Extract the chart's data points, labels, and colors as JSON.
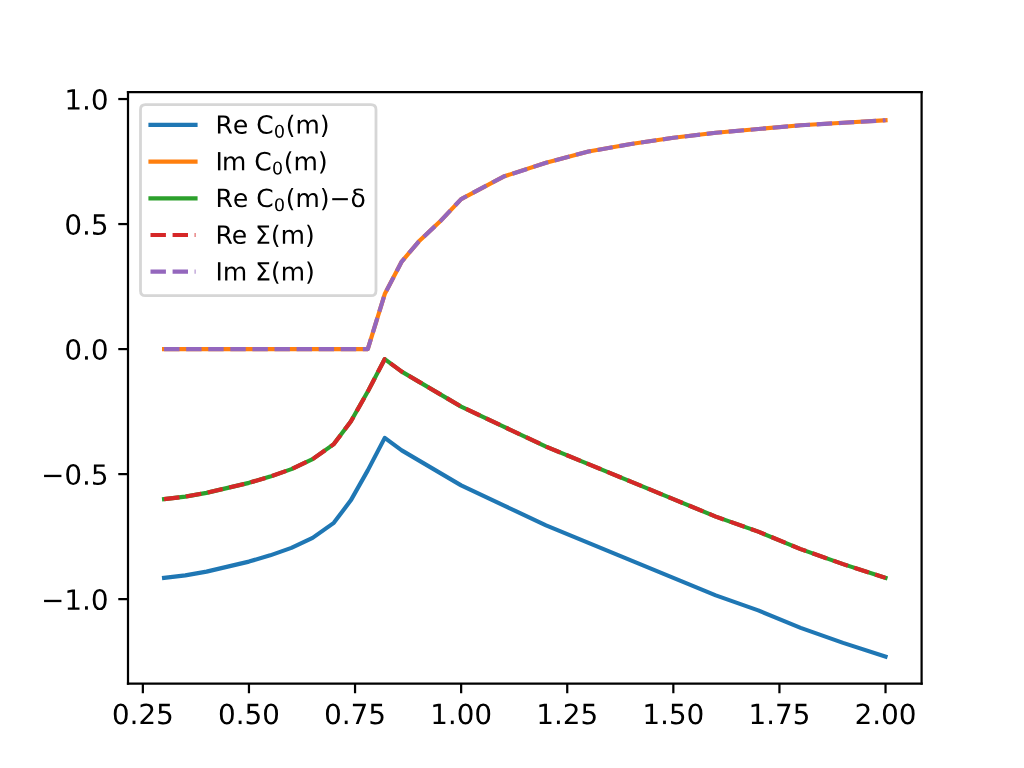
{
  "chart_data": {
    "type": "line",
    "x": [
      0.3,
      0.35,
      0.4,
      0.45,
      0.5,
      0.55,
      0.6,
      0.65,
      0.7,
      0.74,
      0.78,
      0.82,
      0.86,
      0.9,
      0.95,
      1.0,
      1.1,
      1.2,
      1.3,
      1.4,
      1.5,
      1.6,
      1.7,
      1.8,
      1.9,
      2.0
    ],
    "series": [
      {
        "name": "Re C$_{0}$(m)",
        "color": "#1f77b4",
        "line_style": "solid",
        "values": [
          -0.915,
          -0.905,
          -0.89,
          -0.87,
          -0.85,
          -0.825,
          -0.795,
          -0.755,
          -0.695,
          -0.605,
          -0.485,
          -0.355,
          -0.405,
          -0.445,
          -0.495,
          -0.545,
          -0.625,
          -0.705,
          -0.775,
          -0.845,
          -0.915,
          -0.985,
          -1.045,
          -1.115,
          -1.175,
          -1.23
        ]
      },
      {
        "name": "Im C$_{0}$(m)",
        "color": "#ff7f0e",
        "line_style": "solid",
        "values": [
          0,
          0,
          0,
          0,
          0,
          0,
          0,
          0,
          0,
          0,
          0,
          0.22,
          0.35,
          0.43,
          0.51,
          0.6,
          0.69,
          0.745,
          0.79,
          0.82,
          0.845,
          0.865,
          0.88,
          0.895,
          0.905,
          0.915
        ]
      },
      {
        "name": "Re C$_{0}$(m)−δ",
        "color": "#2ca02c",
        "line_style": "solid",
        "values": [
          -0.6,
          -0.59,
          -0.575,
          -0.555,
          -0.535,
          -0.51,
          -0.48,
          -0.44,
          -0.38,
          -0.29,
          -0.17,
          -0.04,
          -0.09,
          -0.13,
          -0.18,
          -0.23,
          -0.31,
          -0.39,
          -0.46,
          -0.53,
          -0.6,
          -0.67,
          -0.73,
          -0.8,
          -0.86,
          -0.915
        ]
      },
      {
        "name": "Re Σ(m)",
        "color": "#d62728",
        "line_style": "dashed",
        "values": [
          -0.6,
          -0.59,
          -0.575,
          -0.555,
          -0.535,
          -0.51,
          -0.48,
          -0.44,
          -0.38,
          -0.29,
          -0.17,
          -0.04,
          -0.09,
          -0.13,
          -0.18,
          -0.23,
          -0.31,
          -0.39,
          -0.46,
          -0.53,
          -0.6,
          -0.67,
          -0.73,
          -0.8,
          -0.86,
          -0.915
        ]
      },
      {
        "name": "Im Σ(m)",
        "color": "#9467bd",
        "line_style": "dashed",
        "values": [
          0,
          0,
          0,
          0,
          0,
          0,
          0,
          0,
          0,
          0,
          0,
          0.22,
          0.35,
          0.43,
          0.51,
          0.6,
          0.69,
          0.745,
          0.79,
          0.82,
          0.845,
          0.865,
          0.88,
          0.895,
          0.905,
          0.915
        ]
      }
    ],
    "xlim": [
      0.215,
      2.085
    ],
    "ylim": [
      -1.3375,
      1.0275
    ],
    "xticks": [
      {
        "value": 0.25,
        "label": "0.25"
      },
      {
        "value": 0.5,
        "label": "0.50"
      },
      {
        "value": 0.75,
        "label": "0.75"
      },
      {
        "value": 1.0,
        "label": "1.00"
      },
      {
        "value": 1.25,
        "label": "1.25"
      },
      {
        "value": 1.5,
        "label": "1.50"
      },
      {
        "value": 1.75,
        "label": "1.75"
      },
      {
        "value": 2.0,
        "label": "2.00"
      }
    ],
    "yticks": [
      {
        "value": -1.0,
        "label": "−1.0"
      },
      {
        "value": -0.5,
        "label": "−0.5"
      },
      {
        "value": 0.0,
        "label": "0.0"
      },
      {
        "value": 0.5,
        "label": "0.5"
      },
      {
        "value": 1.0,
        "label": "1.0"
      }
    ],
    "legend": "top left",
    "grid": false
  }
}
